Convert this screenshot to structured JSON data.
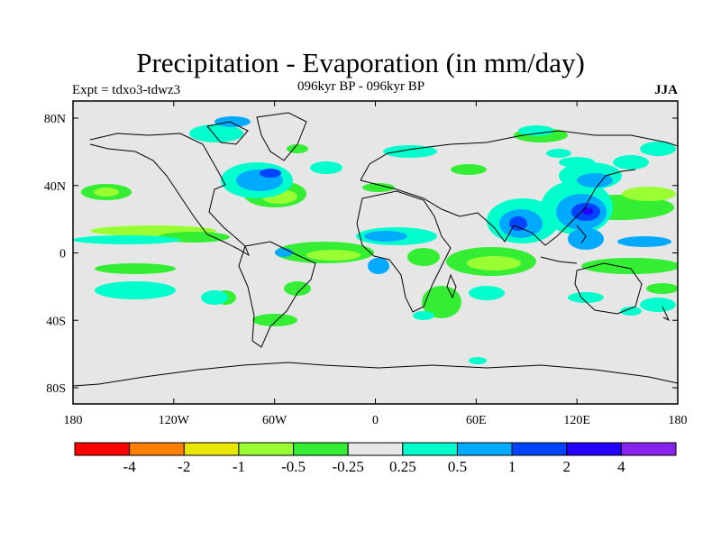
{
  "title": "Precipitation - Evaporation (in mm/day)",
  "experiment": "Expt = tdxo3-tdwz3",
  "period": "096kyr BP - 096kyr BP",
  "season": "JJA",
  "map": {
    "lon_labels": [
      "180",
      "120W",
      "60W",
      "0",
      "60E",
      "120E",
      "180"
    ],
    "lat_labels": [
      "80N",
      "40N",
      "0",
      "40S",
      "80S"
    ],
    "lon_range": [
      -180,
      180
    ],
    "lat_range": [
      -90,
      90
    ],
    "background_color": "#e6e6e6"
  },
  "colorbar": {
    "colors": [
      "#ff0000",
      "#ff8000",
      "#e6e600",
      "#99ff33",
      "#33ee33",
      "#e6e6e6",
      "#00ffcc",
      "#00aaff",
      "#0044ff",
      "#2200ff",
      "#8822ee"
    ],
    "labels": [
      "-4",
      "-2",
      "-1",
      "-0.5",
      "-0.25",
      "0.25",
      "0.5",
      "1",
      "2",
      "4"
    ]
  }
}
